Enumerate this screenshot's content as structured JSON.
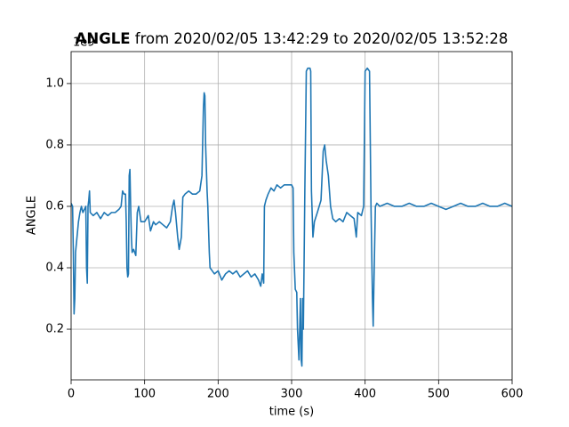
{
  "chart_data": {
    "type": "line",
    "title_bold": "ANGLE",
    "title": "from 2020/02/05 13:42:29 to 2020/02/05 13:52:28",
    "xlabel": "time (s)",
    "ylabel": "ANGLE",
    "offset_label": "1e9",
    "xlim": [
      0,
      600
    ],
    "xticks": [
      0,
      100,
      200,
      300,
      400,
      500,
      600
    ],
    "ylim": [
      0.035,
      1.104
    ],
    "yticks": [
      0.2,
      0.4,
      0.6,
      0.8,
      {
        "value": 1,
        "label": "1.0"
      }
    ],
    "grid": true,
    "x": [
      0,
      2,
      3,
      4,
      5,
      6,
      8,
      10,
      12,
      14,
      16,
      18,
      20,
      21,
      22,
      23,
      24,
      25,
      26,
      30,
      35,
      40,
      45,
      50,
      55,
      60,
      65,
      68,
      70,
      72,
      74,
      75,
      76,
      77,
      78,
      79,
      80,
      81,
      82,
      83,
      85,
      88,
      90,
      92,
      95,
      100,
      105,
      108,
      112,
      115,
      120,
      125,
      130,
      135,
      138,
      140,
      142,
      145,
      147,
      150,
      152,
      155,
      160,
      165,
      170,
      175,
      178,
      180,
      181,
      182,
      183,
      185,
      186,
      188,
      189,
      192,
      195,
      200,
      205,
      210,
      215,
      220,
      225,
      230,
      235,
      240,
      245,
      250,
      255,
      258,
      260,
      262,
      263,
      265,
      268,
      272,
      276,
      280,
      285,
      290,
      295,
      300,
      302,
      303,
      305,
      307,
      308,
      310,
      312,
      313,
      314,
      315,
      316,
      318,
      320,
      322,
      325,
      326,
      327,
      329,
      331,
      335,
      340,
      343,
      345,
      347,
      350,
      353,
      356,
      360,
      365,
      370,
      375,
      380,
      385,
      388,
      390,
      395,
      398,
      400,
      403,
      406,
      408,
      410,
      411,
      412,
      414,
      416,
      420,
      430,
      440,
      450,
      460,
      470,
      480,
      490,
      500,
      510,
      520,
      530,
      540,
      550,
      560,
      570,
      580,
      590,
      600
    ],
    "series": [
      {
        "name": "ANGLE",
        "color": "#1f77b4",
        "values": [
          0.61,
          0.6,
          0.45,
          0.25,
          0.3,
          0.45,
          0.5,
          0.55,
          0.58,
          0.6,
          0.58,
          0.59,
          0.6,
          0.4,
          0.35,
          0.6,
          0.62,
          0.65,
          0.58,
          0.57,
          0.58,
          0.56,
          0.58,
          0.57,
          0.58,
          0.58,
          0.59,
          0.6,
          0.65,
          0.64,
          0.64,
          0.55,
          0.4,
          0.37,
          0.38,
          0.7,
          0.72,
          0.6,
          0.5,
          0.45,
          0.46,
          0.44,
          0.58,
          0.6,
          0.55,
          0.55,
          0.57,
          0.52,
          0.55,
          0.54,
          0.55,
          0.54,
          0.53,
          0.55,
          0.6,
          0.62,
          0.58,
          0.5,
          0.46,
          0.5,
          0.63,
          0.64,
          0.65,
          0.64,
          0.64,
          0.65,
          0.7,
          0.92,
          0.97,
          0.96,
          0.8,
          0.65,
          0.6,
          0.45,
          0.4,
          0.39,
          0.38,
          0.39,
          0.36,
          0.38,
          0.39,
          0.38,
          0.39,
          0.37,
          0.38,
          0.39,
          0.37,
          0.38,
          0.36,
          0.34,
          0.38,
          0.35,
          0.6,
          0.62,
          0.64,
          0.66,
          0.65,
          0.67,
          0.66,
          0.67,
          0.67,
          0.67,
          0.66,
          0.45,
          0.33,
          0.32,
          0.2,
          0.1,
          0.3,
          0.1,
          0.08,
          0.3,
          0.2,
          0.65,
          1.04,
          1.05,
          1.05,
          1.04,
          0.65,
          0.5,
          0.55,
          0.58,
          0.62,
          0.78,
          0.8,
          0.75,
          0.7,
          0.6,
          0.56,
          0.55,
          0.56,
          0.55,
          0.58,
          0.57,
          0.56,
          0.5,
          0.58,
          0.57,
          0.6,
          1.04,
          1.05,
          1.04,
          0.6,
          0.3,
          0.21,
          0.35,
          0.6,
          0.61,
          0.6,
          0.61,
          0.6,
          0.6,
          0.61,
          0.6,
          0.6,
          0.61,
          0.6,
          0.59,
          0.6,
          0.61,
          0.6,
          0.6,
          0.61,
          0.6,
          0.6,
          0.61,
          0.6
        ]
      }
    ]
  }
}
